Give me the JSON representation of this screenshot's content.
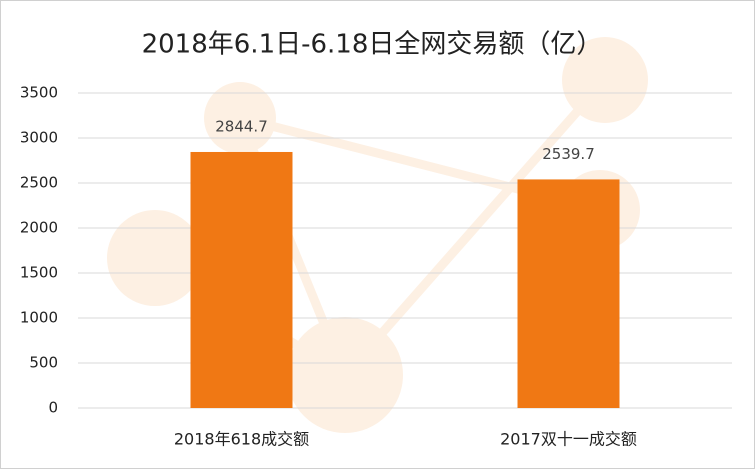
{
  "chart_data": {
    "type": "bar",
    "title": "2018年6.1日-6.18日全网交易额（亿）",
    "categories": [
      "2018年618成交额",
      "2017双十一成交额"
    ],
    "values": [
      2844.7,
      2539.7
    ],
    "color": "#f07814",
    "ylim": [
      0,
      3500
    ],
    "yticks": [
      0,
      500,
      1000,
      1500,
      2000,
      2500,
      3000,
      3500
    ],
    "grid": true
  }
}
